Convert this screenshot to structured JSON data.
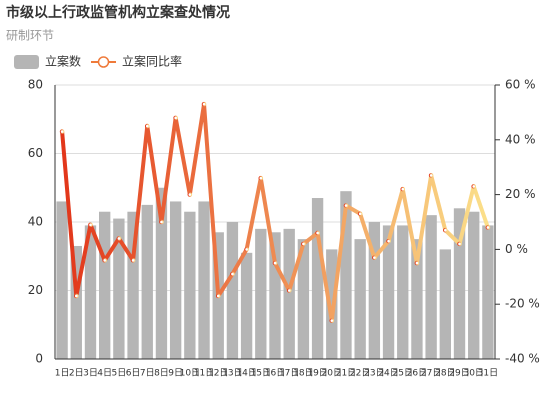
{
  "chart_data": {
    "type": "bar-line",
    "title": "市级以上行政监管机构立案查处情况",
    "subtitle": "研制环节",
    "categories": [
      "1日",
      "2日",
      "3日",
      "4日",
      "5日",
      "6日",
      "7日",
      "8日",
      "9日",
      "10日",
      "11日",
      "12日",
      "13日",
      "14日",
      "15日",
      "16日",
      "17日",
      "18日",
      "19日",
      "20日",
      "21日",
      "22日",
      "23日",
      "24日",
      "25日",
      "26日",
      "27日",
      "28日",
      "29日",
      "30日",
      "31日"
    ],
    "series": [
      {
        "name": "立案数",
        "type": "bar",
        "color": "#b5b5b5",
        "values": [
          46,
          33,
          39,
          43,
          41,
          43,
          45,
          50,
          46,
          43,
          46,
          37,
          40,
          31,
          38,
          37,
          38,
          35,
          47,
          32,
          49,
          35,
          40,
          39,
          39,
          35,
          42,
          32,
          44,
          43,
          39
        ]
      },
      {
        "name": "立案同比率",
        "type": "line",
        "axis": "y2",
        "color": "#ef7a3a",
        "gradient": [
          "#e2361a",
          "#fbe08a"
        ],
        "values": [
          43,
          -17,
          9,
          -4,
          4,
          -4,
          45,
          10,
          48,
          20,
          53,
          -17,
          -9,
          0,
          26,
          -5,
          -15,
          2,
          6,
          -26,
          16,
          13,
          -3,
          3,
          22,
          -5,
          27,
          7,
          2,
          23,
          8
        ]
      }
    ],
    "ylim": [
      0,
      80
    ],
    "yticks": [
      0,
      20,
      40,
      60,
      80
    ],
    "y2lim": [
      -40,
      60
    ],
    "y2ticks": [
      {
        "value": -40,
        "label": "-40 %"
      },
      {
        "value": -20,
        "label": "-20 %"
      },
      {
        "value": 0,
        "label": "0 %"
      },
      {
        "value": 20,
        "label": "20 %"
      },
      {
        "value": 40,
        "label": "40 %"
      },
      {
        "value": 60,
        "label": "60 %"
      }
    ],
    "grid": true
  }
}
